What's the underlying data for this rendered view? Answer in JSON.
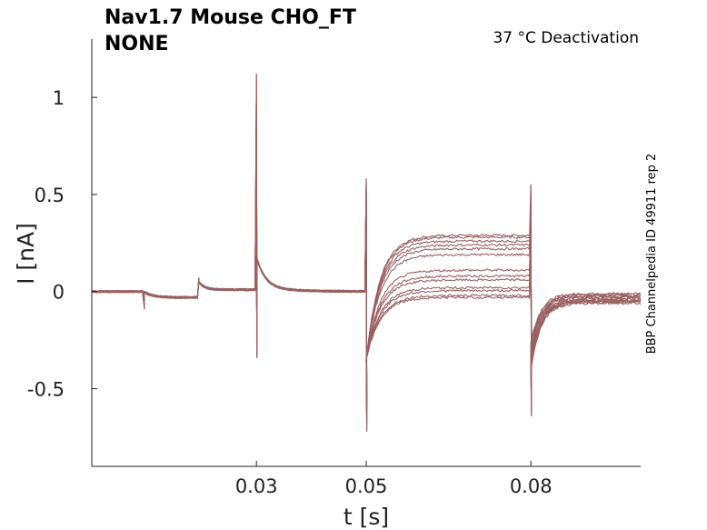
{
  "chart_data": {
    "type": "line",
    "title": "Nav1.7  Mouse  CHO_FT",
    "subtitle": "NONE",
    "annotation": "37 °C  Deactivation",
    "side_label": "BBP Channelpedia ID 49911 rep 2",
    "xlabel": "t [s]",
    "ylabel": "I [nA]",
    "xlim": [
      0.0,
      0.1
    ],
    "ylim": [
      -0.9,
      1.3
    ],
    "xticks": [
      0.03,
      0.05,
      0.08
    ],
    "xtick_labels": [
      "0.03",
      "0.05",
      "0.08"
    ],
    "yticks": [
      1,
      0.5,
      0,
      -0.5
    ],
    "ytick_labels": [
      "1",
      "0.5",
      "0",
      "-0.5"
    ],
    "grid": false,
    "color": "#9a6060",
    "protocol_times_s": {
      "pre_step_start": 0.0095,
      "pre_step_end": 0.0195,
      "activation_start": 0.03,
      "deactivation_start": 0.05,
      "tail_start": 0.08
    },
    "spike_peaks_nA": {
      "at_0.03": [
        1.12,
        -0.34
      ],
      "at_0.05": [
        0.58,
        -0.72
      ],
      "at_0.08": [
        0.55,
        -0.64
      ]
    },
    "series": [
      {
        "plateau": 0.29,
        "tail": -0.01
      },
      {
        "plateau": 0.28,
        "tail": -0.015
      },
      {
        "plateau": 0.26,
        "tail": -0.02
      },
      {
        "plateau": 0.24,
        "tail": -0.025
      },
      {
        "plateau": 0.22,
        "tail": -0.03
      },
      {
        "plateau": 0.19,
        "tail": -0.035
      },
      {
        "plateau": 0.11,
        "tail": -0.04
      },
      {
        "plateau": 0.08,
        "tail": -0.045
      },
      {
        "plateau": 0.06,
        "tail": -0.05
      },
      {
        "plateau": 0.02,
        "tail": -0.05
      },
      {
        "plateau": 0.005,
        "tail": -0.055
      },
      {
        "plateau": -0.02,
        "tail": -0.06
      },
      {
        "plateau": -0.03,
        "tail": -0.05
      }
    ]
  }
}
